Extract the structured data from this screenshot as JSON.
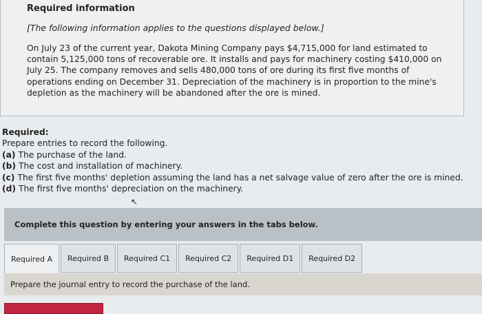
{
  "info": {
    "title": "Required information",
    "subtitle": "[The following information applies to the questions displayed below.]",
    "body": "On July 23 of the current year, Dakota Mining Company pays $4,715,000 for land estimated to contain 5,125,000 tons of recoverable ore. It installs and pays for machinery costing $410,000 on July 25. The company removes and sells 480,000 tons of ore during its first five months of operations ending on December 31. Depreciation of the machinery is in proportion to the mine's depletion as the machinery will be abandoned after the ore is mined."
  },
  "required": {
    "heading": "Required:",
    "intro": "Prepare entries to record the following.",
    "items": [
      {
        "tag": "(a)",
        "text": "The purchase of the land."
      },
      {
        "tag": "(b)",
        "text": "The cost and installation of machinery."
      },
      {
        "tag": "(c)",
        "text": "The first five months' depletion assuming the land has a net salvage value of zero after the ore is mined."
      },
      {
        "tag": "(d)",
        "text": "The first five months' depreciation on the machinery."
      }
    ]
  },
  "banner": "Complete this question by entering your answers in the tabs below.",
  "tabs": [
    {
      "label": "Required A",
      "active": true
    },
    {
      "label": "Required B"
    },
    {
      "label": "Required C1"
    },
    {
      "label": "Required C2"
    },
    {
      "label": "Required D1"
    },
    {
      "label": "Required D2"
    }
  ],
  "prompt": "Prepare the journal entry to record the purchase of the land.",
  "colors": {
    "button": "#c2253f",
    "banner": "#b9c0c6"
  }
}
